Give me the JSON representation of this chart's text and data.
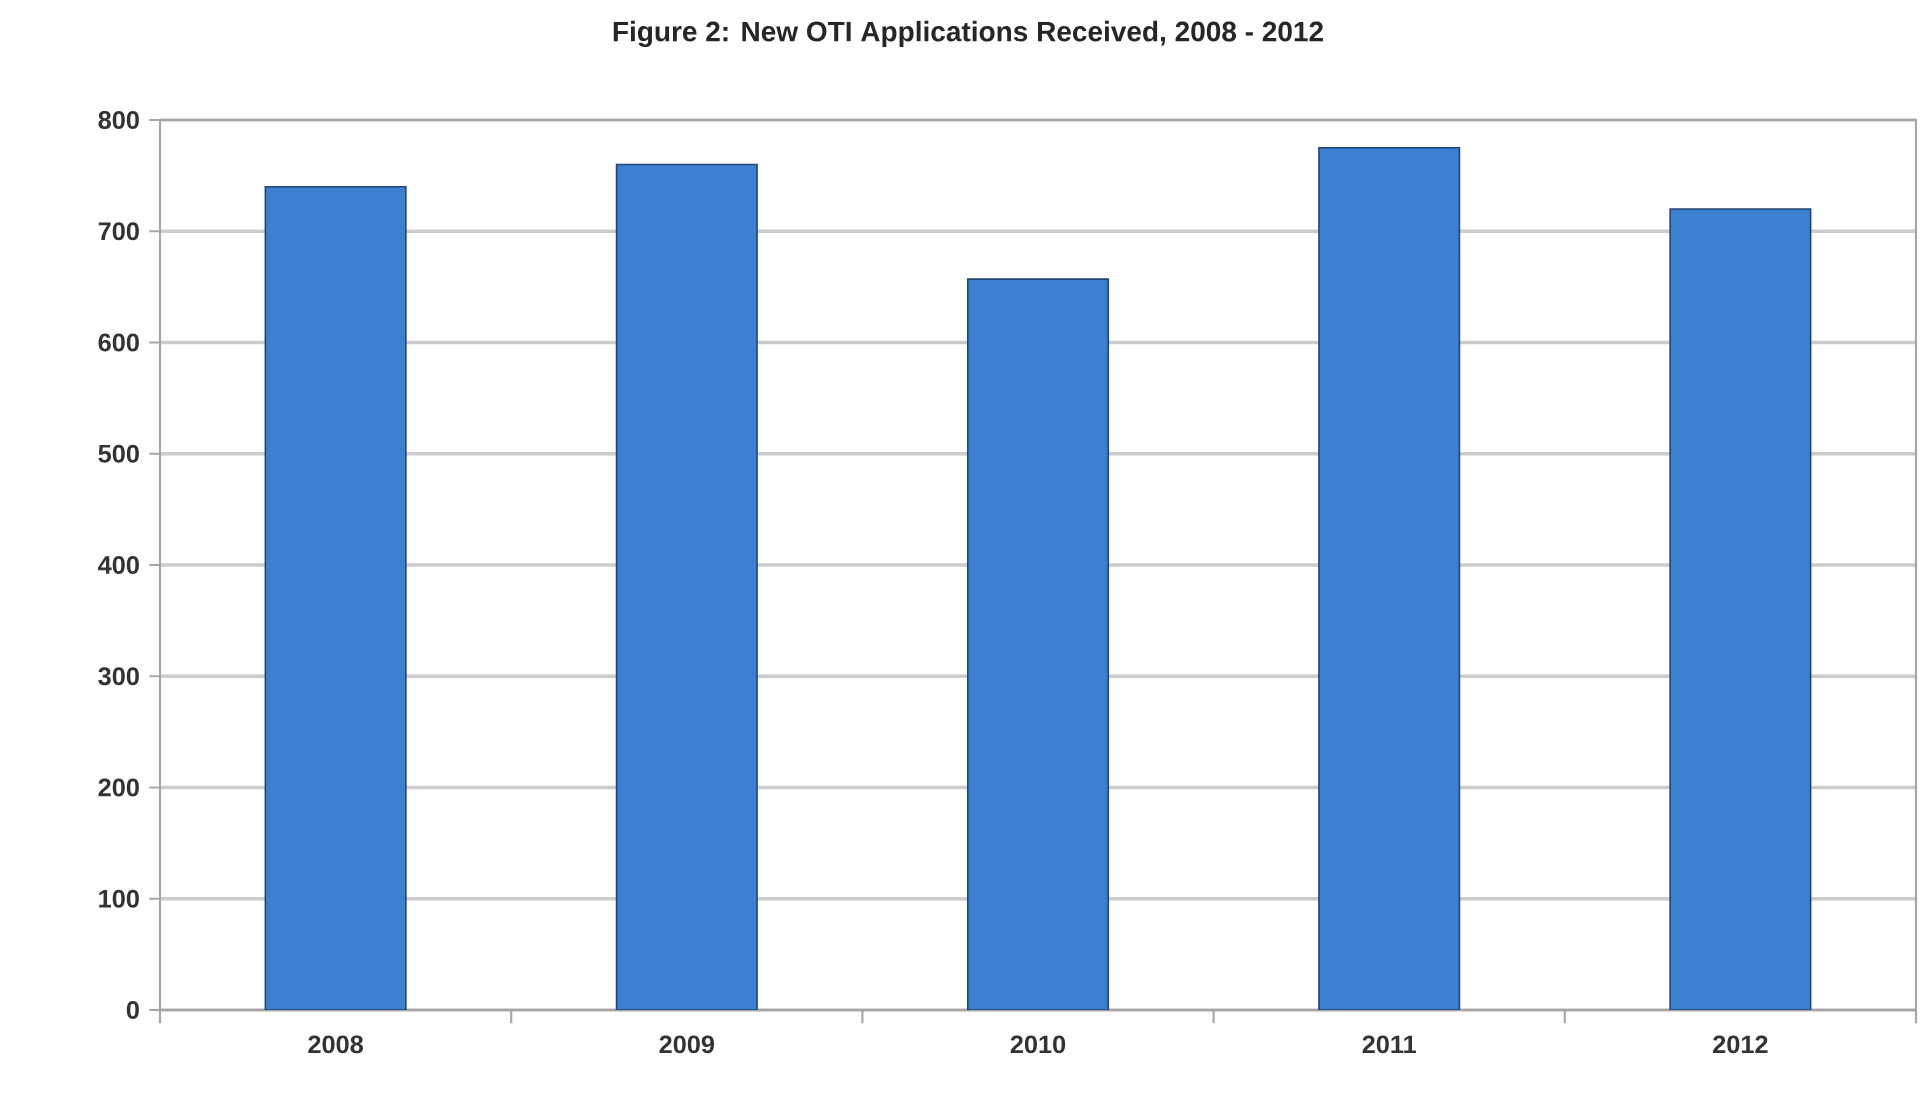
{
  "chart_data": {
    "type": "bar",
    "title": "Figure 2: New OTI Applications Received, 2008 - 2012",
    "categories": [
      "2008",
      "2009",
      "2010",
      "2011",
      "2012"
    ],
    "values": [
      740,
      760,
      657,
      775,
      720
    ],
    "color": "#3d7fd1",
    "ylim": [
      0,
      800
    ],
    "yticks": [
      0,
      100,
      200,
      300,
      400,
      500,
      600,
      700,
      800
    ],
    "grid": "y"
  }
}
